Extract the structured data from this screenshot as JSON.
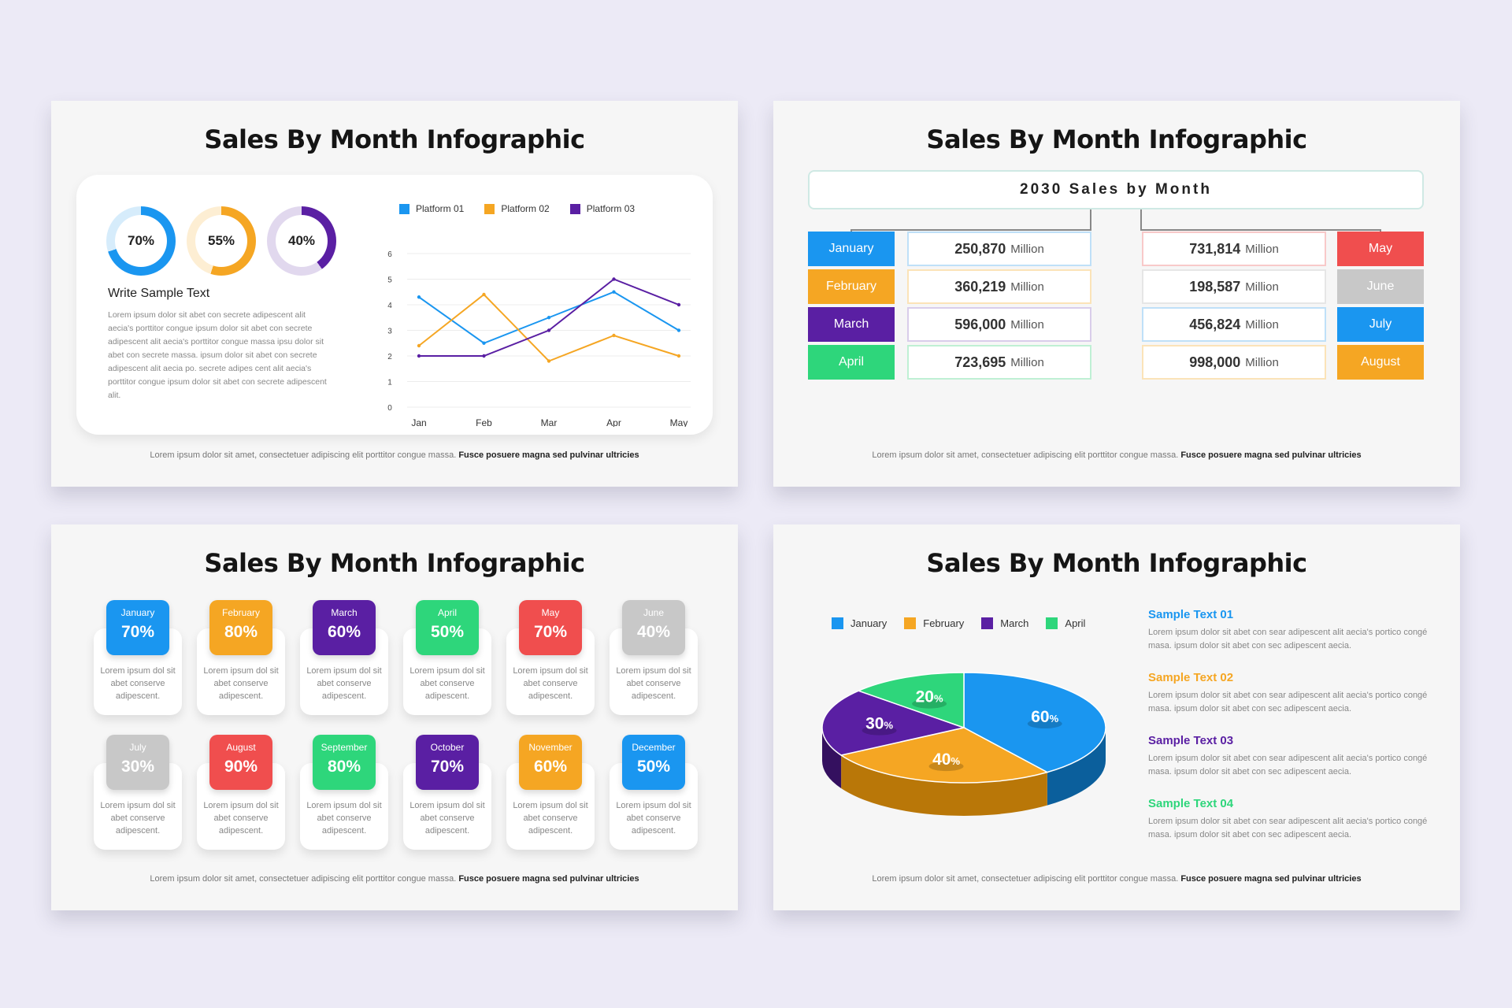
{
  "slides": [
    {
      "title": "Sales By Month Infographic",
      "footer_normal": "Lorem ipsum dolor sit amet, consectetuer adipiscing elit porttitor congue massa.",
      "footer_bold": "Fusce posuere magna sed pulvinar ultricies"
    },
    {
      "title": "Sales By Month Infographic",
      "footer_normal": "Lorem ipsum dolor sit amet, consectetuer adipiscing elit porttitor congue massa.",
      "footer_bold": "Fusce posuere magna sed pulvinar ultricies"
    },
    {
      "title": "Sales By Month Infographic",
      "footer_normal": "Lorem ipsum dolor sit amet, consectetuer adipiscing elit porttitor congue massa.",
      "footer_bold": "Fusce posuere magna sed pulvinar ultricies"
    },
    {
      "title": "Sales By Month Infographic",
      "footer_normal": "Lorem ipsum dolor sit amet, consectetuer adipiscing elit porttitor congue massa.",
      "footer_bold": "Fusce posuere magna sed pulvinar ultricies"
    }
  ],
  "slide1": {
    "donuts": [
      {
        "label": "70%",
        "percent": 70,
        "color": "#1a96f0",
        "track": "#d6ecfb"
      },
      {
        "label": "55%",
        "percent": 55,
        "color": "#f5a623",
        "track": "#fdeed3"
      },
      {
        "label": "40%",
        "percent": 40,
        "color": "#5a1fa3",
        "track": "#e1d8ee"
      }
    ],
    "sample_title": "Write Sample Text",
    "sample_body": "Lorem ipsum dolor sit abet con secrete adipescent alit aecia's porttitor congue ipsum dolor sit abet con secrete adipescent alit aecia's porttitor congue massa ipsu dolor sit abet con secrete massa. ipsum dolor sit abet con secrete adipescent alit aecia po. secrete adipes cent alit aecia's porttitor congue ipsum dolor sit abet con secrete adipescent alit."
  },
  "chart_data": {
    "type": "line",
    "categories": [
      "Jan",
      "Feb",
      "Mar",
      "Apr",
      "May"
    ],
    "ylim": [
      0,
      6
    ],
    "yticks": [
      "0",
      "1",
      "2",
      "3",
      "4",
      "5",
      "6"
    ],
    "series": [
      {
        "name": "Platform 01",
        "color": "#1a96f0",
        "values": [
          4.3,
          2.5,
          3.5,
          4.5,
          3.0
        ]
      },
      {
        "name": "Platform 02",
        "color": "#f5a623",
        "values": [
          2.4,
          4.4,
          1.8,
          2.8,
          2.0
        ]
      },
      {
        "name": "Platform 03",
        "color": "#5a1fa3",
        "values": [
          2.0,
          2.0,
          3.0,
          5.0,
          4.0
        ]
      }
    ]
  },
  "slide2": {
    "header": "2030 Sales by Month",
    "left": [
      {
        "month": "January",
        "value": "250,870",
        "unit": "Million",
        "color": "#1a96f0",
        "border": "#bfe0f8"
      },
      {
        "month": "February",
        "value": "360,219",
        "unit": "Million",
        "color": "#f5a623",
        "border": "#fbe3b8"
      },
      {
        "month": "March",
        "value": "596,000",
        "unit": "Million",
        "color": "#5a1fa3",
        "border": "#d9cdea"
      },
      {
        "month": "April",
        "value": "723,695",
        "unit": "Million",
        "color": "#2ed67b",
        "border": "#bff0d4"
      }
    ],
    "right": [
      {
        "month": "May",
        "value": "731,814",
        "unit": "Million",
        "color": "#f04e4e",
        "border": "#f8c9c9"
      },
      {
        "month": "June",
        "value": "198,587",
        "unit": "Million",
        "color": "#c8c8c8",
        "border": "#e6e6e6"
      },
      {
        "month": "July",
        "value": "456,824",
        "unit": "Million",
        "color": "#1a96f0",
        "border": "#bfe0f8"
      },
      {
        "month": "August",
        "value": "998,000",
        "unit": "Million",
        "color": "#f5a623",
        "border": "#fbe3b8"
      }
    ]
  },
  "slide3": {
    "desc": "Lorem ipsum dol sit abet conserve adipescent.",
    "months": [
      {
        "month": "January",
        "percent": "70%",
        "color": "#1a96f0"
      },
      {
        "month": "February",
        "percent": "80%",
        "color": "#f5a623"
      },
      {
        "month": "March",
        "percent": "60%",
        "color": "#5a1fa3"
      },
      {
        "month": "April",
        "percent": "50%",
        "color": "#2ed67b"
      },
      {
        "month": "May",
        "percent": "70%",
        "color": "#f04e4e"
      },
      {
        "month": "June",
        "percent": "40%",
        "color": "#c8c8c8"
      },
      {
        "month": "July",
        "percent": "30%",
        "color": "#c8c8c8"
      },
      {
        "month": "August",
        "percent": "90%",
        "color": "#f04e4e"
      },
      {
        "month": "September",
        "percent": "80%",
        "color": "#2ed67b"
      },
      {
        "month": "October",
        "percent": "70%",
        "color": "#5a1fa3"
      },
      {
        "month": "November",
        "percent": "60%",
        "color": "#f5a623"
      },
      {
        "month": "December",
        "percent": "50%",
        "color": "#1a96f0"
      }
    ]
  },
  "slide4": {
    "legend": [
      {
        "name": "January",
        "color": "#1a96f0"
      },
      {
        "name": "February",
        "color": "#f5a623"
      },
      {
        "name": "March",
        "color": "#5a1fa3"
      },
      {
        "name": "April",
        "color": "#2ed67b"
      }
    ],
    "pie_slices": [
      {
        "label": "60",
        "value": 60,
        "color": "#1a96f0",
        "dark": "#0b5f9c"
      },
      {
        "label": "40",
        "value": 40,
        "color": "#f5a623",
        "dark": "#b97708"
      },
      {
        "label": "30",
        "value": 30,
        "color": "#5a1fa3",
        "dark": "#34105f"
      },
      {
        "label": "20",
        "value": 20,
        "color": "#2ed67b",
        "dark": "#1a8a4d"
      }
    ],
    "percent_sign": "%",
    "items": [
      {
        "title": "Sample Text 01",
        "color": "#1a96f0",
        "body": "Lorem ipsum dolor sit abet con sear adipescent alit aecia's portico congé masa. ipsum dolor sit abet con sec adipescent aecia."
      },
      {
        "title": "Sample Text 02",
        "color": "#f5a623",
        "body": "Lorem ipsum dolor sit abet con sear adipescent alit aecia's portico congé masa. ipsum dolor sit abet con sec adipescent aecia."
      },
      {
        "title": "Sample Text 03",
        "color": "#5a1fa3",
        "body": "Lorem ipsum dolor sit abet con sear adipescent alit aecia's portico congé masa. ipsum dolor sit abet con sec adipescent aecia."
      },
      {
        "title": "Sample Text 04",
        "color": "#2ed67b",
        "body": "Lorem ipsum dolor sit abet con sear adipescent alit aecia's portico congé masa. ipsum dolor sit abet con sec adipescent aecia."
      }
    ]
  }
}
